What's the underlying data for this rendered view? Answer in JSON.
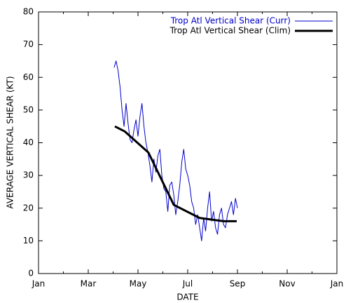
{
  "chart_data": {
    "type": "line",
    "xlabel": "DATE",
    "ylabel": "AVERAGE VERTICAL SHEAR (KT)",
    "xlim": [
      0,
      12
    ],
    "xticks": [
      {
        "value": 0,
        "label": "Jan"
      },
      {
        "value": 2,
        "label": "Mar"
      },
      {
        "value": 4,
        "label": "May"
      },
      {
        "value": 6,
        "label": "Jul"
      },
      {
        "value": 8,
        "label": "Sep"
      },
      {
        "value": 10,
        "label": "Nov"
      },
      {
        "value": 12,
        "label": "Jan"
      }
    ],
    "xminorticks": [
      1,
      3,
      5,
      7,
      9,
      11
    ],
    "ylim": [
      0,
      80
    ],
    "yticks": [
      0,
      10,
      20,
      30,
      40,
      50,
      60,
      70,
      80
    ],
    "legend": "top-right",
    "series": [
      {
        "name": "Trop Atl Vertical Shear (Curr)",
        "color": "#0000cc",
        "width": 1,
        "x": [
          3.04,
          3.12,
          3.2,
          3.28,
          3.36,
          3.44,
          3.52,
          3.6,
          3.68,
          3.76,
          3.84,
          3.92,
          4,
          4.08,
          4.16,
          4.24,
          4.32,
          4.4,
          4.48,
          4.56,
          4.64,
          4.72,
          4.8,
          4.88,
          4.96,
          5.04,
          5.12,
          5.2,
          5.28,
          5.36,
          5.44,
          5.52,
          5.6,
          5.68,
          5.76,
          5.84,
          5.92,
          6,
          6.08,
          6.16,
          6.24,
          6.32,
          6.4,
          6.48,
          6.56,
          6.64,
          6.72,
          6.8,
          6.88,
          6.96,
          7.04,
          7.12,
          7.2,
          7.28,
          7.36,
          7.44,
          7.52,
          7.6,
          7.68,
          7.76,
          7.84,
          7.92,
          8
        ],
        "values": [
          63,
          65,
          62,
          57,
          50,
          45,
          52,
          46,
          41,
          40,
          44,
          47,
          42,
          48,
          52,
          45,
          40,
          37,
          33,
          28,
          35,
          31,
          36,
          38,
          30,
          26,
          25,
          19,
          27,
          28,
          24,
          18,
          22,
          27,
          34,
          38,
          32,
          30,
          27,
          22,
          20,
          15,
          18,
          14,
          10,
          17,
          13,
          20,
          25,
          16,
          19,
          14,
          12,
          18,
          20,
          15,
          14,
          18,
          20,
          22,
          18,
          23,
          20
        ]
      },
      {
        "name": "Trop Atl Vertical Shear (Clim)",
        "color": "#000000",
        "width": 3,
        "x": [
          3.07,
          3.46,
          4.42,
          5.44,
          6.48,
          7.44,
          7.97
        ],
        "values": [
          45,
          43.5,
          37,
          21,
          17,
          16,
          16
        ]
      }
    ]
  }
}
